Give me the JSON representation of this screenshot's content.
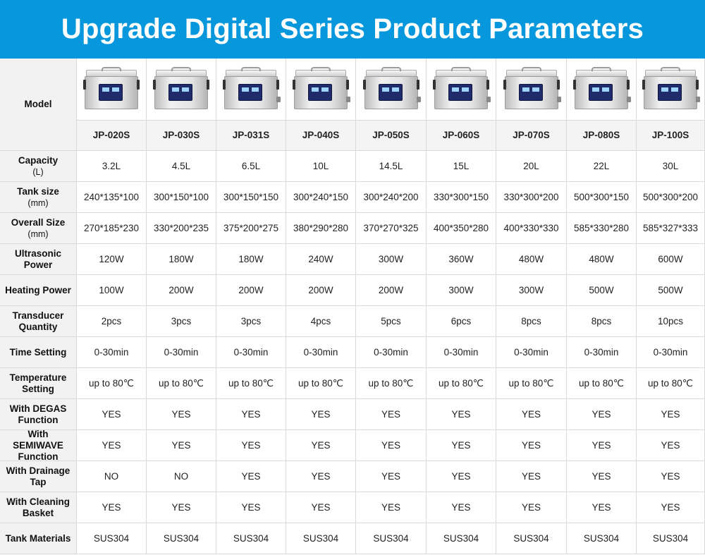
{
  "title": "Upgrade Digital Series Product Parameters",
  "colors": {
    "banner": "#0797dc",
    "label_bg": "#f2f2f2",
    "grid_line": "#d9d9d9"
  },
  "model_label": "Model",
  "models": [
    "JP-020S",
    "JP-030S",
    "JP-031S",
    "JP-040S",
    "JP-050S",
    "JP-060S",
    "JP-070S",
    "JP-080S",
    "JP-100S"
  ],
  "rows": [
    {
      "label": "Capacity",
      "unit": "(L)",
      "values": [
        "3.2L",
        "4.5L",
        "6.5L",
        "10L",
        "14.5L",
        "15L",
        "20L",
        "22L",
        "30L"
      ]
    },
    {
      "label": "Tank size",
      "unit": "(mm)",
      "values": [
        "240*135*100",
        "300*150*100",
        "300*150*150",
        "300*240*150",
        "300*240*200",
        "330*300*150",
        "330*300*200",
        "500*300*150",
        "500*300*200"
      ]
    },
    {
      "label": "Overall Size",
      "unit": "(mm)",
      "values": [
        "270*185*230",
        "330*200*235",
        "375*200*275",
        "380*290*280",
        "370*270*325",
        "400*350*280",
        "400*330*330",
        "585*330*280",
        "585*327*333"
      ]
    },
    {
      "label": "Ultrasonic Power",
      "unit": "",
      "values": [
        "120W",
        "180W",
        "180W",
        "240W",
        "300W",
        "360W",
        "480W",
        "480W",
        "600W"
      ]
    },
    {
      "label": "Heating Power",
      "unit": "",
      "values": [
        "100W",
        "200W",
        "200W",
        "200W",
        "200W",
        "300W",
        "300W",
        "500W",
        "500W"
      ]
    },
    {
      "label": "Transducer Quantity",
      "unit": "",
      "values": [
        "2pcs",
        "3pcs",
        "3pcs",
        "4pcs",
        "5pcs",
        "6pcs",
        "8pcs",
        "8pcs",
        "10pcs"
      ]
    },
    {
      "label": "Time Setting",
      "unit": "",
      "values": [
        "0-30min",
        "0-30min",
        "0-30min",
        "0-30min",
        "0-30min",
        "0-30min",
        "0-30min",
        "0-30min",
        "0-30min"
      ]
    },
    {
      "label": "Temperature Setting",
      "unit": "",
      "values": [
        "up to 80℃",
        "up to 80℃",
        "up to 80℃",
        "up to 80℃",
        "up to 80℃",
        "up to 80℃",
        "up to 80℃",
        "up to 80℃",
        "up to 80℃"
      ]
    },
    {
      "label": "With DEGAS Function",
      "unit": "",
      "values": [
        "YES",
        "YES",
        "YES",
        "YES",
        "YES",
        "YES",
        "YES",
        "YES",
        "YES"
      ]
    },
    {
      "label": "With SEMIWAVE Function",
      "unit": "",
      "values": [
        "YES",
        "YES",
        "YES",
        "YES",
        "YES",
        "YES",
        "YES",
        "YES",
        "YES"
      ]
    },
    {
      "label": "With Drainage Tap",
      "unit": "",
      "values": [
        "NO",
        "NO",
        "YES",
        "YES",
        "YES",
        "YES",
        "YES",
        "YES",
        "YES"
      ]
    },
    {
      "label": "With Cleaning Basket",
      "unit": "",
      "values": [
        "YES",
        "YES",
        "YES",
        "YES",
        "YES",
        "YES",
        "YES",
        "YES",
        "YES"
      ]
    },
    {
      "label": "Tank Materials",
      "unit": "",
      "values": [
        "SUS304",
        "SUS304",
        "SUS304",
        "SUS304",
        "SUS304",
        "SUS304",
        "SUS304",
        "SUS304",
        "SUS304"
      ]
    }
  ]
}
